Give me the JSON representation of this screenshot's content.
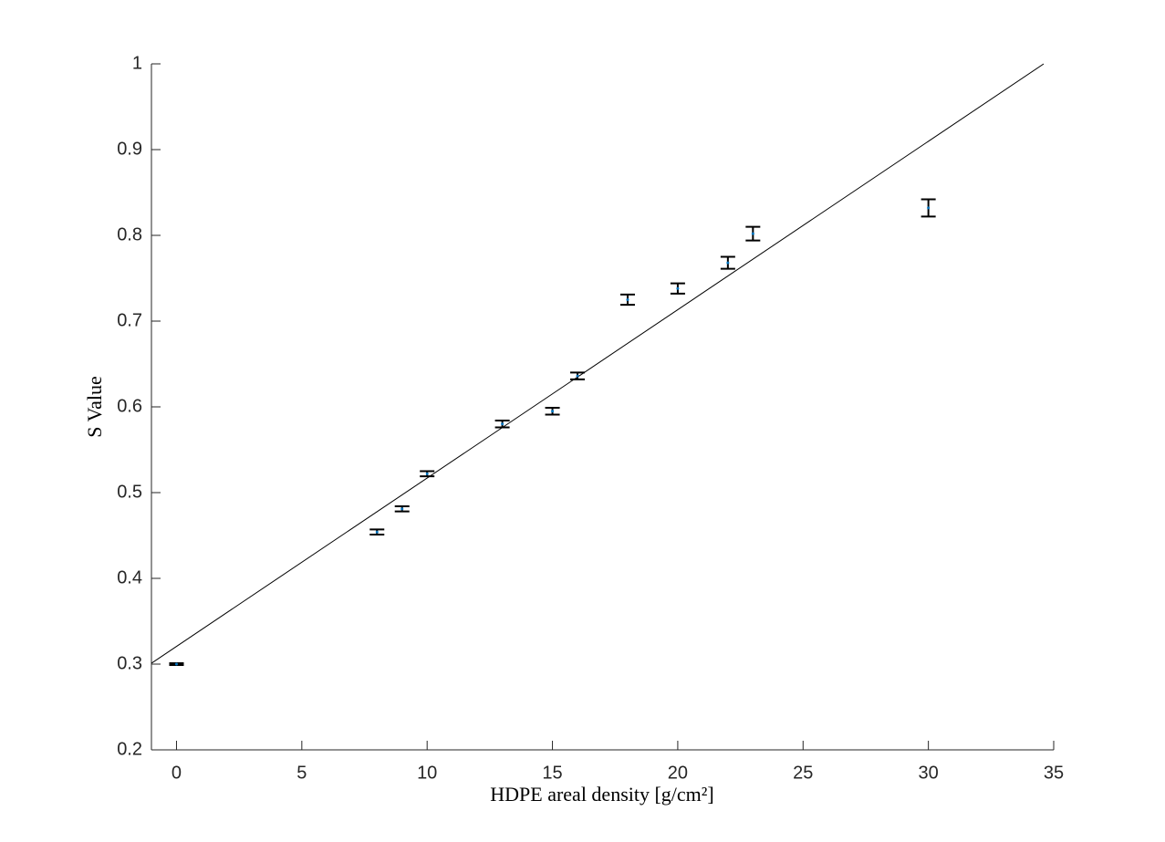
{
  "chart_data": {
    "type": "scatter",
    "xlabel": "HDPE areal density [g/cm²]",
    "ylabel": "S Value",
    "series": [
      {
        "color": "#000000",
        "x": [
          0,
          8,
          9,
          10,
          13,
          15,
          16,
          18,
          20,
          22,
          23,
          30
        ],
        "values": [
          0.3,
          0.454,
          0.481,
          0.522,
          0.58,
          0.595,
          0.636,
          0.725,
          0.738,
          0.768,
          0.802,
          0.832
        ],
        "errors": [
          0.001,
          0.003,
          0.003,
          0.003,
          0.004,
          0.004,
          0.004,
          0.006,
          0.006,
          0.007,
          0.008,
          0.01
        ]
      }
    ],
    "fit_line": {
      "color": "#000000",
      "x": [
        -1,
        34.6
      ],
      "values": [
        0.301,
        1.0
      ]
    },
    "xlim": [
      -1,
      35
    ],
    "xticks": [
      0,
      5,
      10,
      15,
      20,
      25,
      30,
      35
    ],
    "ylim": [
      0.2,
      1
    ],
    "yticks": [
      0.2,
      0.3,
      0.4,
      0.5,
      0.6,
      0.7,
      0.8,
      0.9,
      1
    ],
    "grid": false
  }
}
